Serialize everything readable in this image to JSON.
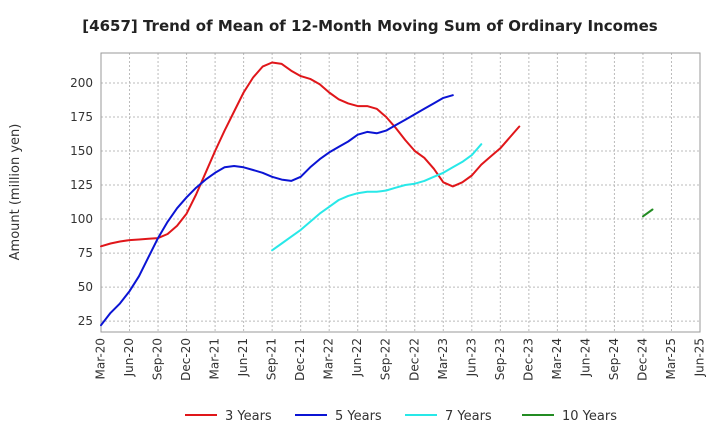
{
  "chart_data": {
    "type": "line",
    "title": "[4657]  Trend of Mean of 12-Month Moving Sum of Ordinary Incomes",
    "xlabel": "",
    "ylabel": "Amount (million yen)",
    "ylim": [
      17,
      222
    ],
    "yticks": [
      25,
      50,
      75,
      100,
      125,
      150,
      175,
      200
    ],
    "x_start_month_index": 0,
    "x_end_month_index": 63,
    "x_tick_labels": [
      "Mar-20",
      "Jun-20",
      "Sep-20",
      "Dec-20",
      "Mar-21",
      "Jun-21",
      "Sep-21",
      "Dec-21",
      "Mar-22",
      "Jun-22",
      "Sep-22",
      "Dec-22",
      "Mar-23",
      "Jun-23",
      "Sep-23",
      "Dec-23",
      "Mar-24",
      "Jun-24",
      "Sep-24",
      "Dec-24",
      "Mar-25",
      "Jun-25"
    ],
    "x_tick_month_indices": [
      0,
      3,
      6,
      9,
      12,
      15,
      18,
      21,
      24,
      27,
      30,
      33,
      36,
      39,
      42,
      45,
      48,
      51,
      54,
      57,
      60,
      63
    ],
    "grid": true,
    "legend_position": "bottom",
    "series": [
      {
        "name": "3 Years",
        "color": "#e0161a",
        "points": [
          [
            0,
            80
          ],
          [
            1,
            82
          ],
          [
            2,
            83.5
          ],
          [
            3,
            84.5
          ],
          [
            4,
            85
          ],
          [
            5,
            85.5
          ],
          [
            6,
            86
          ],
          [
            7,
            89
          ],
          [
            8,
            95
          ],
          [
            9,
            104
          ],
          [
            10,
            118
          ],
          [
            11,
            134
          ],
          [
            12,
            150
          ],
          [
            13,
            165
          ],
          [
            14,
            179
          ],
          [
            15,
            193
          ],
          [
            16,
            204
          ],
          [
            17,
            212
          ],
          [
            18,
            215
          ],
          [
            19,
            214
          ],
          [
            20,
            209
          ],
          [
            21,
            205
          ],
          [
            22,
            203
          ],
          [
            23,
            199
          ],
          [
            24,
            193
          ],
          [
            25,
            188
          ],
          [
            26,
            185
          ],
          [
            27,
            183
          ],
          [
            28,
            183
          ],
          [
            29,
            181
          ],
          [
            30,
            175
          ],
          [
            31,
            167
          ],
          [
            32,
            158
          ],
          [
            33,
            150
          ],
          [
            34,
            145
          ],
          [
            35,
            137
          ],
          [
            36,
            127
          ],
          [
            37,
            124
          ],
          [
            38,
            127
          ],
          [
            39,
            132
          ],
          [
            40,
            140
          ],
          [
            41,
            146
          ],
          [
            42,
            152
          ],
          [
            43,
            160
          ],
          [
            44,
            168
          ]
        ]
      },
      {
        "name": "5 Years",
        "color": "#0b14d4",
        "points": [
          [
            0,
            22
          ],
          [
            1,
            31
          ],
          [
            2,
            38
          ],
          [
            3,
            47
          ],
          [
            4,
            58
          ],
          [
            5,
            72
          ],
          [
            6,
            86
          ],
          [
            7,
            98
          ],
          [
            8,
            108
          ],
          [
            9,
            116
          ],
          [
            10,
            123
          ],
          [
            11,
            129
          ],
          [
            12,
            134
          ],
          [
            13,
            138
          ],
          [
            14,
            139
          ],
          [
            15,
            138
          ],
          [
            16,
            136
          ],
          [
            17,
            134
          ],
          [
            18,
            131
          ],
          [
            19,
            129
          ],
          [
            20,
            128
          ],
          [
            21,
            131
          ],
          [
            22,
            138
          ],
          [
            23,
            144
          ],
          [
            24,
            149
          ],
          [
            25,
            153
          ],
          [
            26,
            157
          ],
          [
            27,
            162
          ],
          [
            28,
            164
          ],
          [
            29,
            163
          ],
          [
            30,
            165
          ],
          [
            31,
            169
          ],
          [
            32,
            173
          ],
          [
            33,
            177
          ],
          [
            34,
            181
          ],
          [
            35,
            185
          ],
          [
            36,
            189
          ],
          [
            37,
            191
          ]
        ]
      },
      {
        "name": "7 Years",
        "color": "#28e8e8",
        "points": [
          [
            0,
            77
          ],
          [
            1,
            82
          ],
          [
            2,
            87
          ],
          [
            3,
            92
          ],
          [
            4,
            98
          ],
          [
            5,
            104
          ],
          [
            6,
            109
          ],
          [
            7,
            114
          ],
          [
            8,
            117
          ],
          [
            9,
            119
          ],
          [
            10,
            120
          ],
          [
            11,
            120
          ],
          [
            12,
            121
          ],
          [
            13,
            123
          ],
          [
            14,
            125
          ],
          [
            15,
            126
          ],
          [
            16,
            128
          ],
          [
            17,
            131
          ],
          [
            18,
            134
          ],
          [
            19,
            138
          ],
          [
            20,
            142
          ],
          [
            21,
            147
          ],
          [
            22,
            155
          ]
        ]
      },
      {
        "name": "10 Years",
        "color": "#238c23",
        "points": [
          [
            0,
            102
          ],
          [
            1,
            107
          ]
        ]
      }
    ],
    "series_start_month_index": [
      0,
      0,
      18,
      57
    ]
  }
}
